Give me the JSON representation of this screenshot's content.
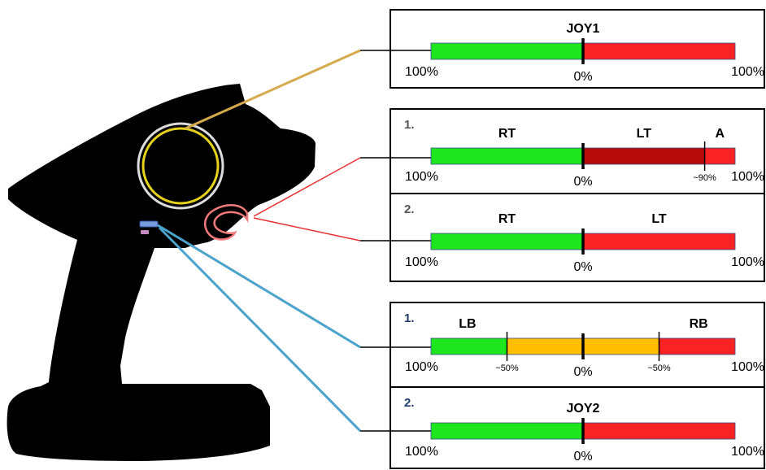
{
  "colors": {
    "green": "#1ee61e",
    "red": "#fa2323",
    "dark_red": "#b80c0c",
    "orange": "#ffbe00",
    "joystick_ring": "#e6d21a",
    "joystick_line": "#d4aa4c",
    "trigger_line": "#e83030",
    "button_line": "#4aa3cc",
    "controller": "#000000",
    "section_number": "#555555",
    "section_number_blue": "#1f3a6e"
  },
  "controller": {
    "parts": [
      "joystick-knob",
      "trigger",
      "button-blue",
      "button-pink"
    ]
  },
  "panels": [
    {
      "id": "joy1",
      "section": "",
      "bar": {
        "segments": [
          {
            "from": 0.0,
            "to": 0.5,
            "color": "green"
          },
          {
            "from": 0.5,
            "to": 1.0,
            "color": "red"
          }
        ],
        "markers": [
          {
            "pos": 0.5,
            "major": true
          }
        ]
      },
      "top_labels": [
        {
          "text": "JOY1",
          "pos": 0.5
        }
      ],
      "bottom_labels": [
        {
          "text": "100%",
          "pos": 0.0,
          "size": "large"
        },
        {
          "text": "0%",
          "pos": 0.5,
          "size": "large"
        },
        {
          "text": "100%",
          "pos": 1.0,
          "size": "large"
        }
      ]
    },
    {
      "id": "triggers-mode1",
      "section": "1.",
      "bar": {
        "segments": [
          {
            "from": 0.0,
            "to": 0.5,
            "color": "green"
          },
          {
            "from": 0.5,
            "to": 0.9,
            "color": "dark_red"
          },
          {
            "from": 0.9,
            "to": 1.0,
            "color": "red"
          }
        ],
        "markers": [
          {
            "pos": 0.5,
            "major": true
          },
          {
            "pos": 0.9,
            "major": false
          }
        ]
      },
      "top_labels": [
        {
          "text": "RT",
          "pos": 0.25
        },
        {
          "text": "LT",
          "pos": 0.7
        },
        {
          "text": "A",
          "pos": 0.95
        }
      ],
      "bottom_labels": [
        {
          "text": "100%",
          "pos": 0.0,
          "size": "large"
        },
        {
          "text": "0%",
          "pos": 0.5,
          "size": "large"
        },
        {
          "text": "~90%",
          "pos": 0.9,
          "size": "small"
        },
        {
          "text": "100%",
          "pos": 1.0,
          "size": "large"
        }
      ]
    },
    {
      "id": "triggers-mode2",
      "section": "2.",
      "bar": {
        "segments": [
          {
            "from": 0.0,
            "to": 0.5,
            "color": "green"
          },
          {
            "from": 0.5,
            "to": 1.0,
            "color": "red"
          }
        ],
        "markers": [
          {
            "pos": 0.5,
            "major": true
          }
        ]
      },
      "top_labels": [
        {
          "text": "RT",
          "pos": 0.25
        },
        {
          "text": "LT",
          "pos": 0.75
        }
      ],
      "bottom_labels": [
        {
          "text": "100%",
          "pos": 0.0,
          "size": "large"
        },
        {
          "text": "0%",
          "pos": 0.5,
          "size": "large"
        },
        {
          "text": "100%",
          "pos": 1.0,
          "size": "large"
        }
      ]
    },
    {
      "id": "buttons-mode1",
      "section": "1.",
      "bar": {
        "segments": [
          {
            "from": 0.0,
            "to": 0.25,
            "color": "green"
          },
          {
            "from": 0.25,
            "to": 0.75,
            "color": "orange"
          },
          {
            "from": 0.75,
            "to": 1.0,
            "color": "red"
          }
        ],
        "markers": [
          {
            "pos": 0.25,
            "major": false
          },
          {
            "pos": 0.5,
            "major": true
          },
          {
            "pos": 0.75,
            "major": false
          }
        ]
      },
      "top_labels": [
        {
          "text": "LB",
          "pos": 0.12
        },
        {
          "text": "RB",
          "pos": 0.88
        }
      ],
      "bottom_labels": [
        {
          "text": "100%",
          "pos": 0.0,
          "size": "large"
        },
        {
          "text": "~50%",
          "pos": 0.25,
          "size": "small"
        },
        {
          "text": "0%",
          "pos": 0.5,
          "size": "large"
        },
        {
          "text": "~50%",
          "pos": 0.75,
          "size": "small"
        },
        {
          "text": "100%",
          "pos": 1.0,
          "size": "large"
        }
      ]
    },
    {
      "id": "buttons-mode2",
      "section": "2.",
      "bar": {
        "segments": [
          {
            "from": 0.0,
            "to": 0.5,
            "color": "green"
          },
          {
            "from": 0.5,
            "to": 1.0,
            "color": "red"
          }
        ],
        "markers": [
          {
            "pos": 0.5,
            "major": true
          }
        ]
      },
      "top_labels": [
        {
          "text": "JOY2",
          "pos": 0.5
        }
      ],
      "bottom_labels": [
        {
          "text": "100%",
          "pos": 0.0,
          "size": "large"
        },
        {
          "text": "0%",
          "pos": 0.5,
          "size": "large"
        },
        {
          "text": "100%",
          "pos": 1.0,
          "size": "large"
        }
      ]
    }
  ]
}
